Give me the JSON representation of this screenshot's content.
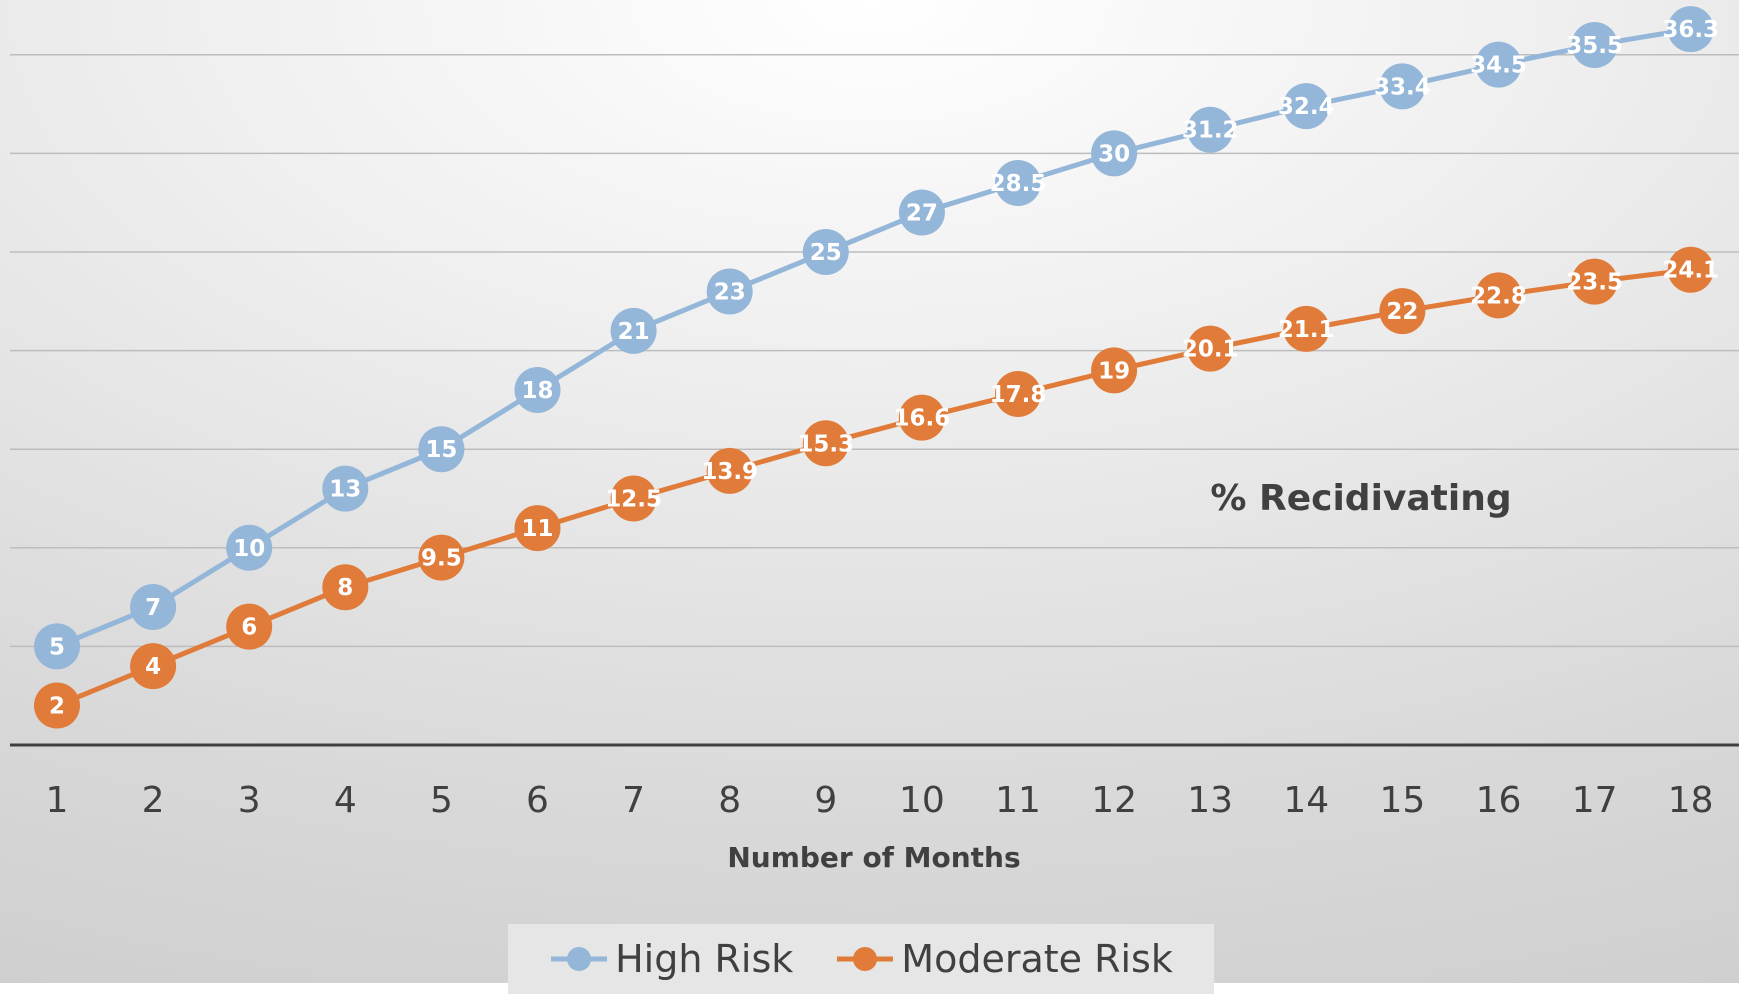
{
  "chart_data": {
    "type": "line",
    "title": "",
    "annotation": "% Recidivating",
    "xlabel": "Number of Months",
    "ylabel": "",
    "categories": [
      "1",
      "2",
      "3",
      "4",
      "5",
      "6",
      "7",
      "8",
      "9",
      "10",
      "11",
      "12",
      "13",
      "14",
      "15",
      "16",
      "17",
      "18"
    ],
    "ylim": [
      0,
      40
    ],
    "grid": true,
    "legend_position": "bottom",
    "series": [
      {
        "name": "High Risk",
        "color": "#94b6d8",
        "values": [
          5,
          7,
          10,
          13,
          15,
          18,
          21,
          23,
          25,
          27,
          28.5,
          30,
          31.2,
          32.4,
          33.4,
          34.5,
          35.5,
          36.3
        ]
      },
      {
        "name": "Moderate Risk",
        "color": "#e07b39",
        "values": [
          2,
          4,
          6,
          8,
          9.5,
          11,
          12.5,
          13.9,
          15.3,
          16.6,
          17.8,
          19,
          20.1,
          21.1,
          22,
          22.8,
          23.5,
          24.1
        ]
      }
    ]
  }
}
